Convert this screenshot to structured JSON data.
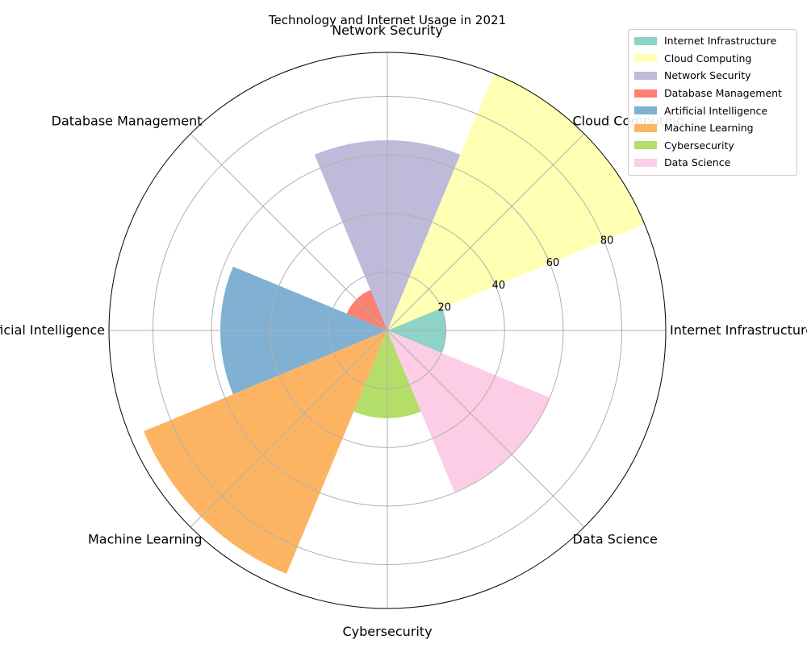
{
  "chart_data": {
    "type": "polar-bar",
    "title": "Technology and Internet Usage in 2021",
    "categories": [
      "Internet Infrastructure",
      "Cloud Computing",
      "Network Security",
      "Database Management",
      "Artificial Intelligence",
      "Machine Learning",
      "Cybersecurity",
      "Data Science"
    ],
    "values": [
      20,
      95,
      65,
      15,
      57,
      90,
      30,
      60
    ],
    "colors": [
      "#8dd3c7",
      "#ffffb3",
      "#bebada",
      "#fb8072",
      "#80b1d3",
      "#fdb462",
      "#b3de69",
      "#fccde5"
    ],
    "radial_ticks": [
      20,
      40,
      60,
      80
    ],
    "rlim": [
      0,
      95
    ],
    "grid": true,
    "legend": {
      "position": "top-right",
      "entries": [
        "Internet Infrastructure",
        "Cloud Computing",
        "Network Security",
        "Database Management",
        "Artificial Intelligence",
        "Machine Learning",
        "Cybersecurity",
        "Data Science"
      ]
    }
  }
}
